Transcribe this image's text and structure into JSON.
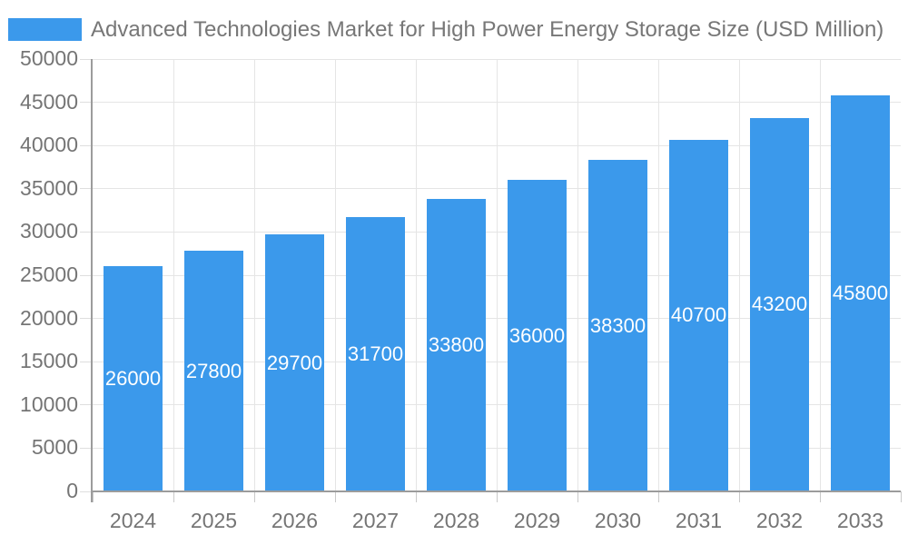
{
  "chart_data": {
    "type": "bar",
    "title": "Advanced Technologies Market for High Power Energy Storage Size (USD Million)",
    "categories": [
      "2024",
      "2025",
      "2026",
      "2027",
      "2028",
      "2029",
      "2030",
      "2031",
      "2032",
      "2033"
    ],
    "values": [
      26000,
      27800,
      29700,
      31700,
      33800,
      36000,
      38300,
      40700,
      43200,
      45800
    ],
    "xlabel": "",
    "ylabel": "",
    "ylim": [
      0,
      50000
    ],
    "ytick_step": 5000,
    "y_tick_labels": [
      "0",
      "5000",
      "10000",
      "15000",
      "20000",
      "25000",
      "30000",
      "35000",
      "40000",
      "45000",
      "50000"
    ],
    "grid": true,
    "legend_position": "top-left",
    "bar_labels_inside": true
  },
  "colors": {
    "bar": "#3b99eb",
    "bar_label": "#ffffff",
    "title": "#777777",
    "axis_label": "#757575",
    "gridline": "#e5e5e5",
    "axis_line": "#9c9c9c"
  }
}
